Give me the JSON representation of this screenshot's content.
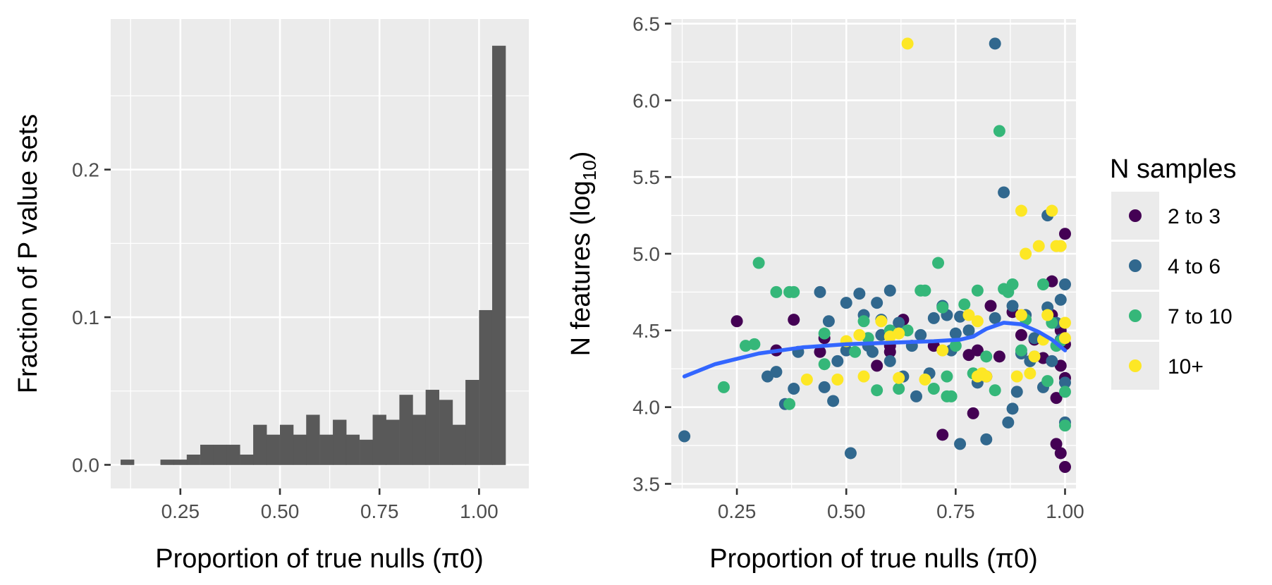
{
  "chart_data": [
    {
      "type": "bar",
      "subtype": "histogram",
      "xlabel": "Proportion of true nulls (π0)",
      "ylabel": "Fraction of P value sets",
      "xlim": [
        0.075,
        1.125
      ],
      "ylim": [
        -0.016,
        0.302
      ],
      "x_ticks": [
        0.25,
        0.5,
        0.75,
        1.0
      ],
      "x_tick_labels": [
        "0.25",
        "0.50",
        "0.75",
        "1.00"
      ],
      "y_ticks": [
        0.0,
        0.1,
        0.2
      ],
      "y_tick_labels": [
        "0.0",
        "0.1",
        "0.2"
      ],
      "bin_width": 0.0333,
      "bins": [
        {
          "x": 0.117,
          "value": 0.0034
        },
        {
          "x": 0.15,
          "value": 0.0
        },
        {
          "x": 0.183,
          "value": 0.0
        },
        {
          "x": 0.217,
          "value": 0.0034
        },
        {
          "x": 0.25,
          "value": 0.0034
        },
        {
          "x": 0.283,
          "value": 0.0068
        },
        {
          "x": 0.317,
          "value": 0.0135
        },
        {
          "x": 0.35,
          "value": 0.0135
        },
        {
          "x": 0.383,
          "value": 0.0135
        },
        {
          "x": 0.417,
          "value": 0.0068
        },
        {
          "x": 0.45,
          "value": 0.027
        },
        {
          "x": 0.483,
          "value": 0.0203
        },
        {
          "x": 0.517,
          "value": 0.027
        },
        {
          "x": 0.55,
          "value": 0.0203
        },
        {
          "x": 0.583,
          "value": 0.0338
        },
        {
          "x": 0.617,
          "value": 0.0203
        },
        {
          "x": 0.65,
          "value": 0.0304
        },
        {
          "x": 0.683,
          "value": 0.0203
        },
        {
          "x": 0.717,
          "value": 0.0169
        },
        {
          "x": 0.75,
          "value": 0.0338
        },
        {
          "x": 0.783,
          "value": 0.0304
        },
        {
          "x": 0.817,
          "value": 0.0473
        },
        {
          "x": 0.85,
          "value": 0.0338
        },
        {
          "x": 0.883,
          "value": 0.0507
        },
        {
          "x": 0.917,
          "value": 0.0439
        },
        {
          "x": 0.95,
          "value": 0.027
        },
        {
          "x": 0.983,
          "value": 0.0574
        },
        {
          "x": 1.017,
          "value": 0.1047
        },
        {
          "x": 1.05,
          "value": 0.2838
        }
      ],
      "bar_color": "#595959",
      "panel_color": "#ebebeb"
    },
    {
      "type": "scatter",
      "xlabel": "Proportion of true nulls (π0)",
      "ylabel_main": "N features (log",
      "ylabel_sub": "10",
      "ylabel_end": ")",
      "xlim": [
        0.1,
        1.025
      ],
      "ylim": [
        3.47,
        6.53
      ],
      "x_ticks": [
        0.25,
        0.5,
        0.75,
        1.0
      ],
      "x_tick_labels": [
        "0.25",
        "0.50",
        "0.75",
        "1.00"
      ],
      "y_ticks": [
        3.5,
        4.0,
        4.5,
        5.0,
        5.5,
        6.0,
        6.5
      ],
      "y_tick_labels": [
        "3.5",
        "4.0",
        "4.5",
        "5.0",
        "5.5",
        "6.0",
        "6.5"
      ],
      "grid": true,
      "legend": {
        "title": "N samples",
        "position": "right",
        "items": [
          {
            "label": "2 to 3",
            "color": "#440154"
          },
          {
            "label": "4 to 6",
            "color": "#31688e"
          },
          {
            "label": "7 to 10",
            "color": "#35b779"
          },
          {
            "label": "10+",
            "color": "#fde725"
          }
        ]
      },
      "series": [
        {
          "name": "2 to 3",
          "color": "#440154",
          "points": [
            [
              0.25,
              4.56
            ],
            [
              0.38,
              4.57
            ],
            [
              0.45,
              4.45
            ],
            [
              0.6,
              4.4
            ],
            [
              0.63,
              4.57
            ],
            [
              0.7,
              4.4
            ],
            [
              0.72,
              3.82
            ],
            [
              0.78,
              4.34
            ],
            [
              0.79,
              3.96
            ],
            [
              0.8,
              4.37
            ],
            [
              0.82,
              4.2
            ],
            [
              0.83,
              4.66
            ],
            [
              0.85,
              4.33
            ],
            [
              0.88,
              4.62
            ],
            [
              0.9,
              4.47
            ],
            [
              0.93,
              4.44
            ],
            [
              0.95,
              4.32
            ],
            [
              0.97,
              4.82
            ],
            [
              0.98,
              3.76
            ],
            [
              0.99,
              3.7
            ],
            [
              1.0,
              3.61
            ],
            [
              1.0,
              5.13
            ],
            [
              0.99,
              4.27
            ],
            [
              1.0,
              4.41
            ],
            [
              0.98,
              4.06
            ],
            [
              0.97,
              4.6
            ],
            [
              0.6,
              4.36
            ],
            [
              0.57,
              4.27
            ],
            [
              0.44,
              4.36
            ],
            [
              0.34,
              4.37
            ],
            [
              1.0,
              4.19
            ],
            [
              0.99,
              4.5
            ]
          ]
        },
        {
          "name": "4 to 6",
          "color": "#31688e",
          "points": [
            [
              0.13,
              3.81
            ],
            [
              0.32,
              4.2
            ],
            [
              0.34,
              4.23
            ],
            [
              0.36,
              4.02
            ],
            [
              0.38,
              4.12
            ],
            [
              0.39,
              4.36
            ],
            [
              0.44,
              4.75
            ],
            [
              0.45,
              4.13
            ],
            [
              0.46,
              4.56
            ],
            [
              0.47,
              4.04
            ],
            [
              0.48,
              4.3
            ],
            [
              0.5,
              4.68
            ],
            [
              0.5,
              4.37
            ],
            [
              0.51,
              3.7
            ],
            [
              0.53,
              4.74
            ],
            [
              0.54,
              4.6
            ],
            [
              0.55,
              4.4
            ],
            [
              0.56,
              4.36
            ],
            [
              0.57,
              4.68
            ],
            [
              0.58,
              4.57
            ],
            [
              0.6,
              4.76
            ],
            [
              0.6,
              4.3
            ],
            [
              0.62,
              4.55
            ],
            [
              0.63,
              4.2
            ],
            [
              0.65,
              4.4
            ],
            [
              0.66,
              4.07
            ],
            [
              0.67,
              4.47
            ],
            [
              0.7,
              4.58
            ],
            [
              0.72,
              4.66
            ],
            [
              0.73,
              4.6
            ],
            [
              0.74,
              4.37
            ],
            [
              0.75,
              4.48
            ],
            [
              0.76,
              3.76
            ],
            [
              0.78,
              4.5
            ],
            [
              0.8,
              4.16
            ],
            [
              0.82,
              3.79
            ],
            [
              0.84,
              6.37
            ],
            [
              0.86,
              5.4
            ],
            [
              0.87,
              3.9
            ],
            [
              0.88,
              3.99
            ],
            [
              0.89,
              4.1
            ],
            [
              0.9,
              4.35
            ],
            [
              0.91,
              4.6
            ],
            [
              0.92,
              4.3
            ],
            [
              0.93,
              4.45
            ],
            [
              0.95,
              4.13
            ],
            [
              0.96,
              5.25
            ],
            [
              0.97,
              4.3
            ],
            [
              0.98,
              4.55
            ],
            [
              0.99,
              4.7
            ],
            [
              1.0,
              4.8
            ],
            [
              1.0,
              3.9
            ],
            [
              1.0,
              4.16
            ],
            [
              0.99,
              4.44
            ],
            [
              0.96,
              4.65
            ],
            [
              0.88,
              4.66
            ],
            [
              0.84,
              4.58
            ],
            [
              0.76,
              4.59
            ],
            [
              0.69,
              4.22
            ],
            [
              0.58,
              4.47
            ]
          ]
        },
        {
          "name": "7 to 10",
          "color": "#35b779",
          "points": [
            [
              0.22,
              4.13
            ],
            [
              0.27,
              4.4
            ],
            [
              0.29,
              4.41
            ],
            [
              0.3,
              4.94
            ],
            [
              0.34,
              4.75
            ],
            [
              0.37,
              4.75
            ],
            [
              0.38,
              4.75
            ],
            [
              0.37,
              4.02
            ],
            [
              0.45,
              4.48
            ],
            [
              0.52,
              4.36
            ],
            [
              0.55,
              4.45
            ],
            [
              0.57,
              4.11
            ],
            [
              0.6,
              4.5
            ],
            [
              0.62,
              4.12
            ],
            [
              0.64,
              4.5
            ],
            [
              0.67,
              4.76
            ],
            [
              0.68,
              4.76
            ],
            [
              0.7,
              4.12
            ],
            [
              0.71,
              4.94
            ],
            [
              0.72,
              4.65
            ],
            [
              0.73,
              4.2
            ],
            [
              0.74,
              4.07
            ],
            [
              0.75,
              4.4
            ],
            [
              0.77,
              4.67
            ],
            [
              0.79,
              4.22
            ],
            [
              0.8,
              4.76
            ],
            [
              0.82,
              4.33
            ],
            [
              0.84,
              4.11
            ],
            [
              0.85,
              5.8
            ],
            [
              0.86,
              4.77
            ],
            [
              0.87,
              4.75
            ],
            [
              0.88,
              4.8
            ],
            [
              0.9,
              4.37
            ],
            [
              0.91,
              4.57
            ],
            [
              0.93,
              4.33
            ],
            [
              0.95,
              4.8
            ],
            [
              0.96,
              4.17
            ],
            [
              0.98,
              4.4
            ],
            [
              0.99,
              4.43
            ],
            [
              1.0,
              3.88
            ],
            [
              1.0,
              4.1
            ],
            [
              0.97,
              4.55
            ],
            [
              0.73,
              4.07
            ],
            [
              0.54,
              4.56
            ],
            [
              0.45,
              4.28
            ]
          ]
        },
        {
          "name": "10+",
          "color": "#fde725",
          "points": [
            [
              0.41,
              4.18
            ],
            [
              0.48,
              4.18
            ],
            [
              0.5,
              4.43
            ],
            [
              0.53,
              4.47
            ],
            [
              0.54,
              4.2
            ],
            [
              0.6,
              4.46
            ],
            [
              0.62,
              4.19
            ],
            [
              0.64,
              6.37
            ],
            [
              0.68,
              4.18
            ],
            [
              0.72,
              4.37
            ],
            [
              0.8,
              4.2
            ],
            [
              0.81,
              4.22
            ],
            [
              0.82,
              4.2
            ],
            [
              0.9,
              4.6
            ],
            [
              0.91,
              5.0
            ],
            [
              0.92,
              4.22
            ],
            [
              0.94,
              5.05
            ],
            [
              0.96,
              4.6
            ],
            [
              0.97,
              5.28
            ],
            [
              0.98,
              5.05
            ],
            [
              0.99,
              5.05
            ],
            [
              1.0,
              4.55
            ],
            [
              1.0,
              4.45
            ],
            [
              0.95,
              4.44
            ],
            [
              0.93,
              4.33
            ],
            [
              0.9,
              5.28
            ],
            [
              0.89,
              4.2
            ],
            [
              0.78,
              4.6
            ],
            [
              0.58,
              4.56
            ],
            [
              0.62,
              4.48
            ],
            [
              0.8,
              4.56
            ]
          ]
        }
      ],
      "smooth": {
        "color": "#3366ff",
        "points": [
          [
            0.13,
            4.2
          ],
          [
            0.2,
            4.28
          ],
          [
            0.3,
            4.35
          ],
          [
            0.4,
            4.39
          ],
          [
            0.5,
            4.41
          ],
          [
            0.6,
            4.42
          ],
          [
            0.7,
            4.43
          ],
          [
            0.76,
            4.44
          ],
          [
            0.79,
            4.46
          ],
          [
            0.82,
            4.51
          ],
          [
            0.86,
            4.55
          ],
          [
            0.9,
            4.54
          ],
          [
            0.94,
            4.49
          ],
          [
            0.97,
            4.44
          ],
          [
            1.0,
            4.37
          ]
        ]
      }
    }
  ]
}
